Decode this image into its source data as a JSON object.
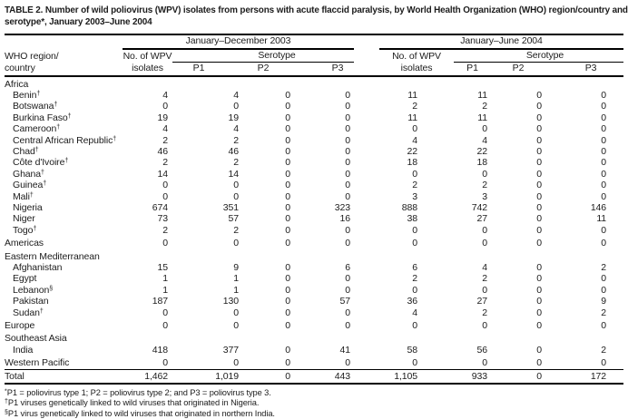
{
  "title": "TABLE 2. Number of wild poliovirus (WPV) isolates from persons with acute flaccid paralysis, by World Health Organization (WHO) region/country and serotype*, January 2003–June 2004",
  "columns": {
    "row_header_line1": "WHO region/",
    "row_header_line2": "country",
    "groups": [
      {
        "label": "January–December 2003",
        "isolates_line1": "No. of WPV",
        "isolates_line2": "isolates",
        "serotype_label": "Serotype",
        "serotypes": [
          "P1",
          "P2",
          "P3"
        ]
      },
      {
        "label": "January–June 2004",
        "isolates_line1": "No. of WPV",
        "isolates_line2": "isolates",
        "serotype_label": "Serotype",
        "serotypes": [
          "P1",
          "P2",
          "P3"
        ]
      }
    ]
  },
  "rows": [
    {
      "type": "section",
      "label": "Africa",
      "marker": "",
      "values": []
    },
    {
      "type": "country",
      "label": "Benin",
      "marker": "†",
      "values": [
        "4",
        "4",
        "0",
        "0",
        "11",
        "11",
        "0",
        "0"
      ]
    },
    {
      "type": "country",
      "label": "Botswana",
      "marker": "†",
      "values": [
        "0",
        "0",
        "0",
        "0",
        "2",
        "2",
        "0",
        "0"
      ]
    },
    {
      "type": "country",
      "label": "Burkina Faso",
      "marker": "†",
      "values": [
        "19",
        "19",
        "0",
        "0",
        "11",
        "11",
        "0",
        "0"
      ]
    },
    {
      "type": "country",
      "label": "Cameroon",
      "marker": "†",
      "values": [
        "4",
        "4",
        "0",
        "0",
        "0",
        "0",
        "0",
        "0"
      ]
    },
    {
      "type": "country",
      "label": "Central African Republic",
      "marker": "†",
      "values": [
        "2",
        "2",
        "0",
        "0",
        "4",
        "4",
        "0",
        "0"
      ]
    },
    {
      "type": "country",
      "label": "Chad",
      "marker": "†",
      "values": [
        "46",
        "46",
        "0",
        "0",
        "22",
        "22",
        "0",
        "0"
      ]
    },
    {
      "type": "country",
      "label": "Côte d'Ivoire",
      "marker": "†",
      "values": [
        "2",
        "2",
        "0",
        "0",
        "18",
        "18",
        "0",
        "0"
      ]
    },
    {
      "type": "country",
      "label": "Ghana",
      "marker": "†",
      "values": [
        "14",
        "14",
        "0",
        "0",
        "0",
        "0",
        "0",
        "0"
      ]
    },
    {
      "type": "country",
      "label": "Guinea",
      "marker": "†",
      "values": [
        "0",
        "0",
        "0",
        "0",
        "2",
        "2",
        "0",
        "0"
      ]
    },
    {
      "type": "country",
      "label": "Mali",
      "marker": "†",
      "values": [
        "0",
        "0",
        "0",
        "0",
        "3",
        "3",
        "0",
        "0"
      ]
    },
    {
      "type": "country",
      "label": "Nigeria",
      "marker": "",
      "values": [
        "674",
        "351",
        "0",
        "323",
        "888",
        "742",
        "0",
        "146"
      ]
    },
    {
      "type": "country",
      "label": "Niger",
      "marker": "",
      "values": [
        "73",
        "57",
        "0",
        "16",
        "38",
        "27",
        "0",
        "11"
      ]
    },
    {
      "type": "country",
      "label": "Togo",
      "marker": "†",
      "values": [
        "2",
        "2",
        "0",
        "0",
        "0",
        "0",
        "0",
        "0"
      ]
    },
    {
      "type": "section-data",
      "label": "Americas",
      "marker": "",
      "values": [
        "0",
        "0",
        "0",
        "0",
        "0",
        "0",
        "0",
        "0"
      ]
    },
    {
      "type": "section",
      "label": "Eastern Mediterranean",
      "marker": "",
      "values": []
    },
    {
      "type": "country",
      "label": "Afghanistan",
      "marker": "",
      "values": [
        "15",
        "9",
        "0",
        "6",
        "6",
        "4",
        "0",
        "2"
      ]
    },
    {
      "type": "country",
      "label": "Egypt",
      "marker": "",
      "values": [
        "1",
        "1",
        "0",
        "0",
        "2",
        "2",
        "0",
        "0"
      ]
    },
    {
      "type": "country",
      "label": "Lebanon",
      "marker": "§",
      "values": [
        "1",
        "1",
        "0",
        "0",
        "0",
        "0",
        "0",
        "0"
      ]
    },
    {
      "type": "country",
      "label": "Pakistan",
      "marker": "",
      "values": [
        "187",
        "130",
        "0",
        "57",
        "36",
        "27",
        "0",
        "9"
      ]
    },
    {
      "type": "country",
      "label": "Sudan",
      "marker": "†",
      "values": [
        "0",
        "0",
        "0",
        "0",
        "4",
        "2",
        "0",
        "2"
      ]
    },
    {
      "type": "section-data",
      "label": "Europe",
      "marker": "",
      "values": [
        "0",
        "0",
        "0",
        "0",
        "0",
        "0",
        "0",
        "0"
      ]
    },
    {
      "type": "section",
      "label": "Southeast Asia",
      "marker": "",
      "values": []
    },
    {
      "type": "country",
      "label": "India",
      "marker": "",
      "values": [
        "418",
        "377",
        "0",
        "41",
        "58",
        "56",
        "0",
        "2"
      ]
    },
    {
      "type": "section-data",
      "label": "Western Pacific",
      "marker": "",
      "values": [
        "0",
        "0",
        "0",
        "0",
        "0",
        "0",
        "0",
        "0"
      ]
    },
    {
      "type": "total",
      "label": "Total",
      "marker": "",
      "values": [
        "1,462",
        "1,019",
        "0",
        "443",
        "1,105",
        "933",
        "0",
        "172"
      ]
    }
  ],
  "footnotes": [
    {
      "marker": "*",
      "text": "P1 = poliovirus type 1; P2 = poliovirus type 2; and P3 = poliovirus type 3."
    },
    {
      "marker": "†",
      "text": "P1 viruses genetically linked to wild viruses that originated in Nigeria."
    },
    {
      "marker": "§",
      "text": "P1 virus genetically linked to wild viruses that originated in northern India."
    }
  ]
}
